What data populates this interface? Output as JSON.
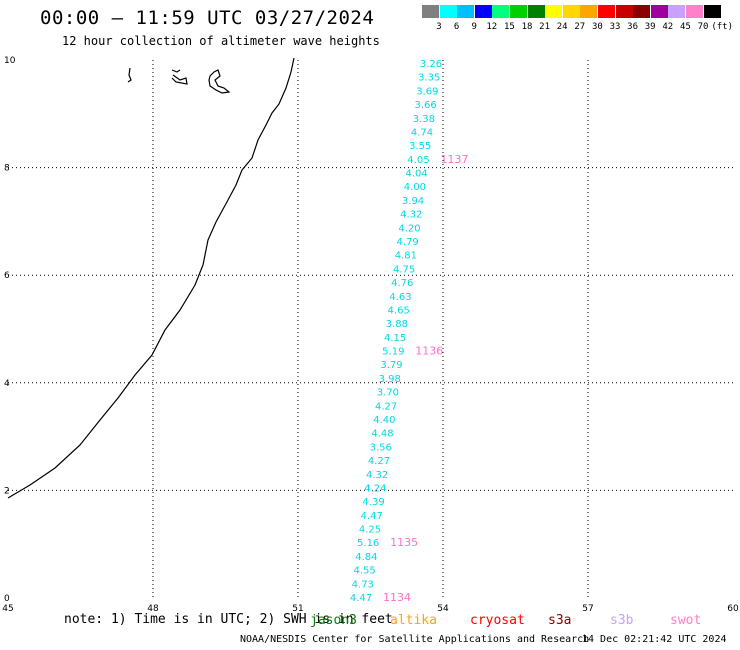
{
  "title": "00:00 — 11:59 UTC 03/27/2024",
  "subtitle": "12 hour collection of altimeter wave heights",
  "legend": {
    "unit": "(ft)",
    "bins": [
      {
        "label": "3",
        "color": "#808080"
      },
      {
        "label": "6",
        "color": "#00ffff"
      },
      {
        "label": "9",
        "color": "#00bfff"
      },
      {
        "label": "12",
        "color": "#0000ff"
      },
      {
        "label": "15",
        "color": "#00ff7f"
      },
      {
        "label": "18",
        "color": "#00d000"
      },
      {
        "label": "21",
        "color": "#008000"
      },
      {
        "label": "24",
        "color": "#ffff00"
      },
      {
        "label": "27",
        "color": "#ffd700"
      },
      {
        "label": "30",
        "color": "#ffa500"
      },
      {
        "label": "33",
        "color": "#ff0000"
      },
      {
        "label": "36",
        "color": "#c80000"
      },
      {
        "label": "39",
        "color": "#8b0000"
      },
      {
        "label": "42",
        "color": "#a000a0"
      },
      {
        "label": "45",
        "color": "#c8a0ff"
      },
      {
        "label": "70",
        "color": "#ff80c8"
      },
      {
        "label": "",
        "color": "#000000"
      }
    ]
  },
  "map": {
    "x_ticks": [
      "45",
      "48",
      "51",
      "54",
      "57",
      "60"
    ],
    "y_ticks": [
      "0",
      "2",
      "4",
      "6",
      "8",
      "10"
    ],
    "wave_color": "#00d8e8",
    "track_label_color": "#ff70c8",
    "wave_heights": [
      "3.26",
      "3.35",
      "3.69",
      "3.66",
      "3.38",
      "4.74",
      "3.55",
      "4.05",
      "4.04",
      "4.00",
      "3.94",
      "4.32",
      "4.20",
      "4.79",
      "4.81",
      "4.75",
      "4.76",
      "4.63",
      "4.65",
      "3.88",
      "4.15",
      "5.19",
      "3.79",
      "3.98",
      "3.70",
      "4.27",
      "4.40",
      "4.48",
      "3.56",
      "4.27",
      "4.32",
      "4.24",
      "4.39",
      "4.47",
      "4.25",
      "5.16",
      "4.84",
      "4.55",
      "4.73",
      "4.47"
    ],
    "track_labels": [
      {
        "label": "1137",
        "index": 7
      },
      {
        "label": "1136",
        "index": 21
      },
      {
        "label": "1135",
        "index": 35
      },
      {
        "label": "1134",
        "index": 39
      }
    ]
  },
  "footer": {
    "note": "note: 1) Time is in UTC; 2) SWH is in feet",
    "satellites": [
      {
        "name": "jason3",
        "color": "#008000"
      },
      {
        "name": "altika",
        "color": "#ffa500"
      },
      {
        "name": "cryosat",
        "color": "#ff0000"
      },
      {
        "name": "s3a",
        "color": "#8b0000"
      },
      {
        "name": "s3b",
        "color": "#c8a0ff"
      },
      {
        "name": "swot",
        "color": "#ff80c8"
      }
    ],
    "credit": "NOAA/NESDIS Center for Satellite Applications and Research",
    "timestamp": "14 Dec 02:21:42 UTC 2024"
  }
}
